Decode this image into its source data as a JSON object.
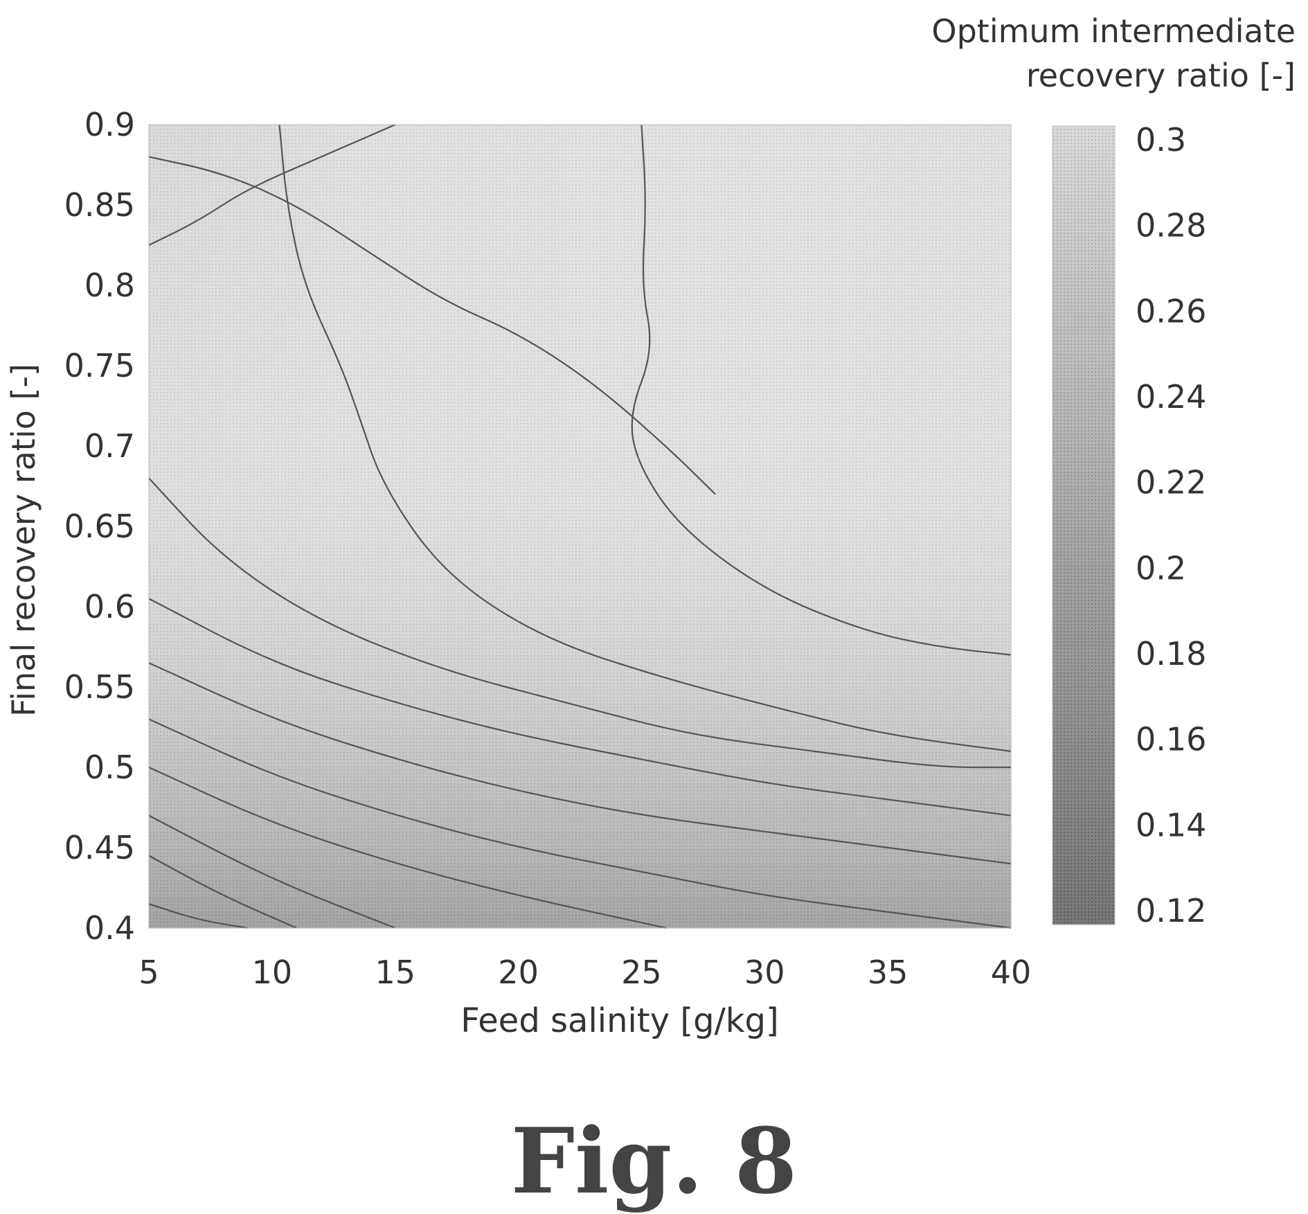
{
  "chart_data": {
    "type": "heatmap",
    "xlabel": "Feed salinity [g/kg]",
    "ylabel": "Final recovery ratio [-]",
    "x_ticks": [
      5,
      10,
      15,
      20,
      25,
      30,
      35,
      40
    ],
    "y_ticks": [
      0.4,
      0.45,
      0.5,
      0.55,
      0.6,
      0.65,
      0.7,
      0.75,
      0.8,
      0.85,
      0.9
    ],
    "xlim": [
      5,
      40
    ],
    "ylim": [
      0.4,
      0.9
    ],
    "colorbar": {
      "title_line1": "Optimum intermediate",
      "title_line2": "recovery ratio [-]",
      "ticks": [
        0.3,
        0.28,
        0.26,
        0.24,
        0.22,
        0.2,
        0.18,
        0.16,
        0.14,
        0.12
      ],
      "range": [
        0.115,
        0.305
      ]
    },
    "contours": [
      {
        "level": 0.12,
        "points": [
          [
            5,
            0.415
          ],
          [
            7,
            0.405
          ],
          [
            9,
            0.4
          ]
        ]
      },
      {
        "level": 0.14,
        "points": [
          [
            5,
            0.445
          ],
          [
            8,
            0.42
          ],
          [
            11,
            0.4
          ]
        ]
      },
      {
        "level": 0.16,
        "points": [
          [
            5,
            0.47
          ],
          [
            10,
            0.43
          ],
          [
            15,
            0.4
          ]
        ]
      },
      {
        "level": 0.18,
        "points": [
          [
            5,
            0.5
          ],
          [
            10,
            0.465
          ],
          [
            15,
            0.44
          ],
          [
            20,
            0.42
          ],
          [
            26,
            0.4
          ]
        ]
      },
      {
        "level": 0.2,
        "points": [
          [
            5,
            0.53
          ],
          [
            10,
            0.495
          ],
          [
            15,
            0.47
          ],
          [
            20,
            0.45
          ],
          [
            25,
            0.435
          ],
          [
            30,
            0.42
          ],
          [
            35,
            0.41
          ],
          [
            40,
            0.4
          ]
        ]
      },
      {
        "level": 0.22,
        "points": [
          [
            5,
            0.565
          ],
          [
            10,
            0.53
          ],
          [
            15,
            0.505
          ],
          [
            20,
            0.485
          ],
          [
            25,
            0.47
          ],
          [
            30,
            0.46
          ],
          [
            35,
            0.45
          ],
          [
            40,
            0.44
          ]
        ]
      },
      {
        "level": 0.24,
        "points": [
          [
            5,
            0.605
          ],
          [
            10,
            0.565
          ],
          [
            15,
            0.54
          ],
          [
            20,
            0.52
          ],
          [
            25,
            0.505
          ],
          [
            30,
            0.49
          ],
          [
            35,
            0.48
          ],
          [
            40,
            0.47
          ]
        ]
      },
      {
        "level": 0.26,
        "points": [
          [
            5,
            0.68
          ],
          [
            8,
            0.63
          ],
          [
            12,
            0.59
          ],
          [
            17,
            0.56
          ],
          [
            22,
            0.54
          ],
          [
            27,
            0.52
          ],
          [
            32,
            0.51
          ],
          [
            37,
            0.5
          ],
          [
            40,
            0.5
          ]
        ]
      },
      {
        "level": 0.28,
        "points": [
          [
            10.3,
            0.9
          ],
          [
            10.6,
            0.85
          ],
          [
            11.3,
            0.8
          ],
          [
            12.8,
            0.75
          ],
          [
            13.5,
            0.72
          ],
          [
            14.5,
            0.675
          ],
          [
            17,
            0.62
          ],
          [
            21,
            0.58
          ],
          [
            26,
            0.555
          ],
          [
            31,
            0.535
          ],
          [
            35,
            0.52
          ],
          [
            40,
            0.51
          ]
        ]
      },
      {
        "level": 0.3,
        "points": [
          [
            25,
            0.9
          ],
          [
            25.2,
            0.85
          ],
          [
            25,
            0.8
          ],
          [
            25.5,
            0.76
          ],
          [
            24.5,
            0.72
          ],
          [
            24.8,
            0.69
          ],
          [
            26.5,
            0.65
          ],
          [
            30,
            0.61
          ],
          [
            34,
            0.585
          ],
          [
            37,
            0.575
          ],
          [
            40,
            0.57
          ]
        ]
      },
      {
        "level": 0.28,
        "points": [
          [
            5,
            0.88
          ],
          [
            8,
            0.87
          ],
          [
            11,
            0.85
          ],
          [
            14,
            0.82
          ],
          [
            17,
            0.79
          ],
          [
            20,
            0.77
          ],
          [
            23,
            0.74
          ],
          [
            26,
            0.7
          ],
          [
            28,
            0.67
          ]
        ]
      },
      {
        "level": 0.26,
        "points": [
          [
            5,
            0.825
          ],
          [
            7,
            0.84
          ],
          [
            9,
            0.86
          ],
          [
            12,
            0.88
          ],
          [
            15,
            0.9
          ]
        ]
      }
    ]
  },
  "figure_label": "Fig. 8"
}
